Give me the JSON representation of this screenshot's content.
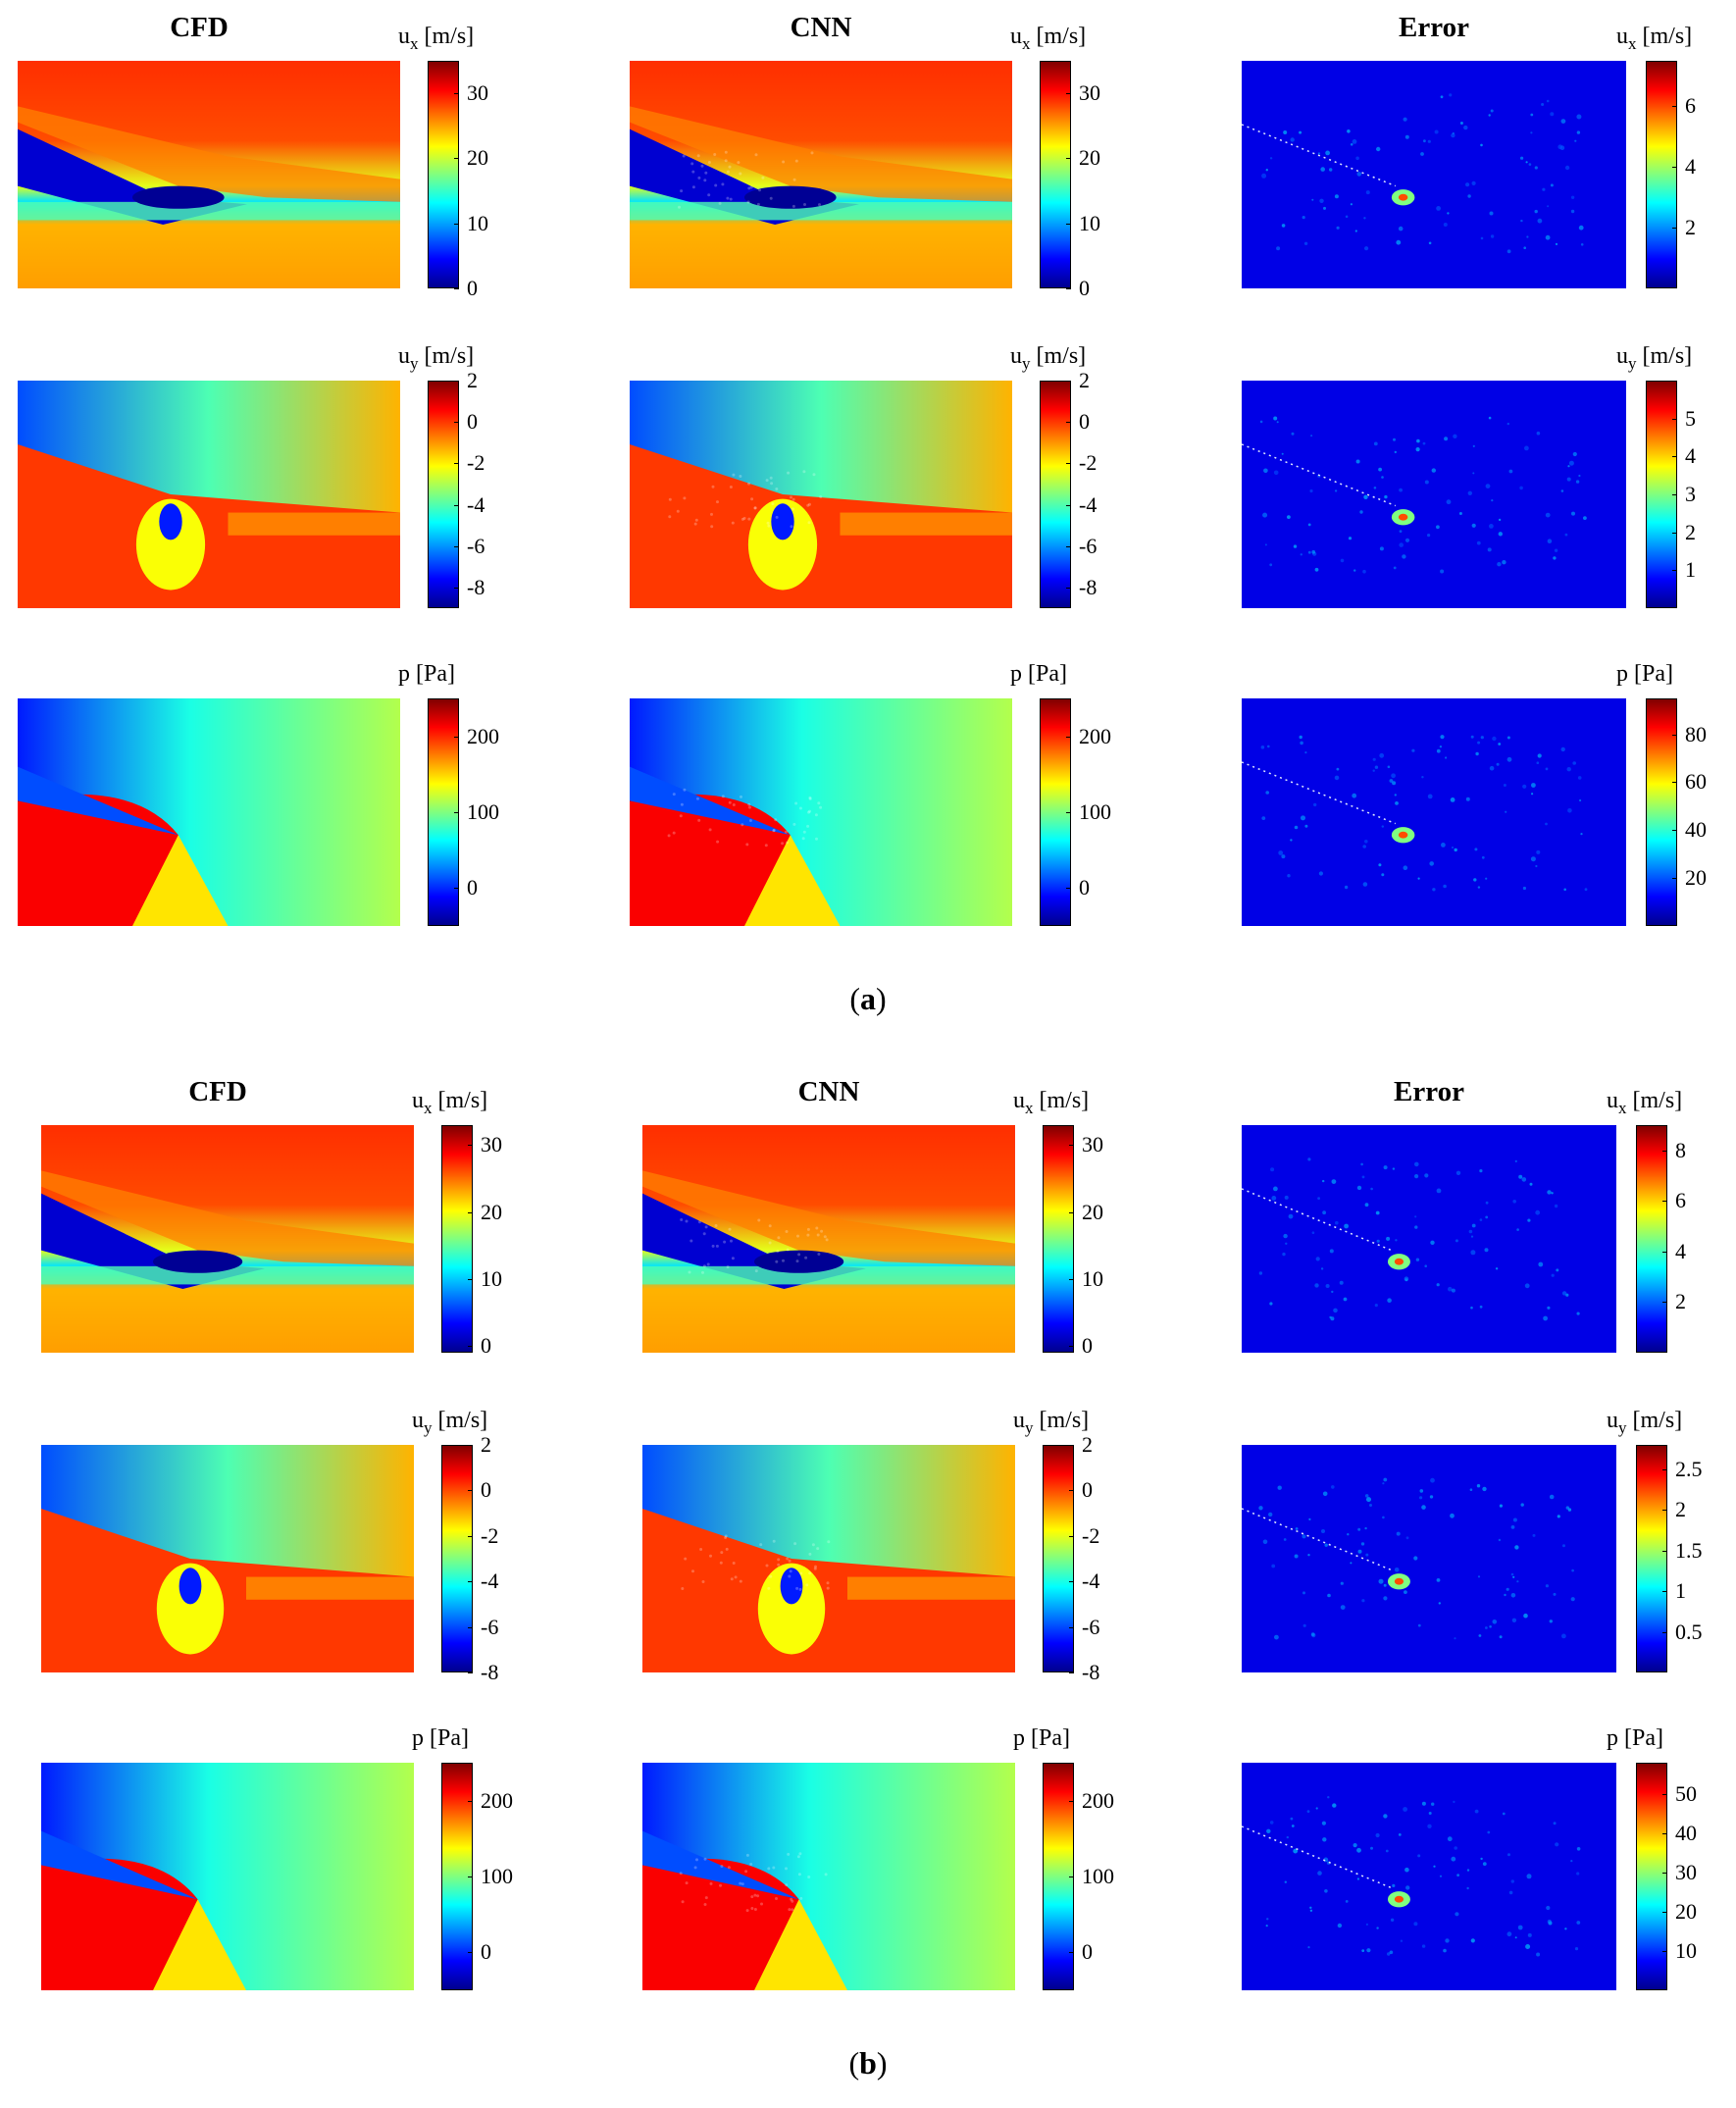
{
  "figure": {
    "columns": [
      "CFD",
      "CNN",
      "Error"
    ],
    "quantities": {
      "ux": {
        "sym": "u",
        "sub": "x",
        "unit": "[m/s]"
      },
      "uy": {
        "sym": "u",
        "sub": "y",
        "unit": "[m/s]"
      },
      "p": {
        "sym": "p",
        "sub": "",
        "unit": "[Pa]"
      }
    },
    "panels": [
      {
        "caption_open": "(",
        "caption_letter": "a",
        "caption_close": ")",
        "rows": [
          {
            "qty": "ux",
            "field": {
              "min": 0,
              "max": 35
            },
            "error": {
              "min": 0,
              "max": 7.5
            },
            "field_ticks": [
              "0",
              "10",
              "20",
              "30"
            ],
            "error_ticks": [
              "2",
              "4",
              "6"
            ]
          },
          {
            "qty": "uy",
            "field": {
              "min": -9,
              "max": 2
            },
            "error": {
              "min": 0,
              "max": 6
            },
            "field_ticks": [
              "-8",
              "-6",
              "-4",
              "-2",
              "0",
              "2"
            ],
            "error_ticks": [
              "1",
              "2",
              "3",
              "4",
              "5"
            ]
          },
          {
            "qty": "p",
            "field": {
              "min": -50,
              "max": 250
            },
            "error": {
              "min": 0,
              "max": 95
            },
            "field_ticks": [
              "0",
              "100",
              "200"
            ],
            "error_ticks": [
              "20",
              "40",
              "60",
              "80"
            ]
          }
        ]
      },
      {
        "caption_open": "(",
        "caption_letter": "b",
        "caption_close": ")",
        "rows": [
          {
            "qty": "ux",
            "field": {
              "min": -1,
              "max": 33
            },
            "error": {
              "min": 0,
              "max": 9
            },
            "field_ticks": [
              "0",
              "10",
              "20",
              "30"
            ],
            "error_ticks": [
              "2",
              "4",
              "6",
              "8"
            ]
          },
          {
            "qty": "uy",
            "field": {
              "min": -8,
              "max": 2
            },
            "error": {
              "min": 0,
              "max": 2.8
            },
            "field_ticks": [
              "-8",
              "-6",
              "-4",
              "-2",
              "0",
              "2"
            ],
            "error_ticks": [
              "0.5",
              "1",
              "1.5",
              "2",
              "2.5"
            ]
          },
          {
            "qty": "p",
            "field": {
              "min": -50,
              "max": 250
            },
            "error": {
              "min": 0,
              "max": 58
            },
            "field_ticks": [
              "0",
              "100",
              "200"
            ],
            "error_ticks": [
              "10",
              "20",
              "30",
              "40",
              "50"
            ]
          }
        ]
      }
    ]
  },
  "chart_data": {
    "type": "heatmap",
    "colormap": "jet",
    "panels": [
      {
        "label": "a",
        "columns": [
          "CFD",
          "CNN",
          "Error"
        ],
        "rows": [
          {
            "quantity": "ux",
            "unit": "m/s",
            "field_range": [
              0,
              35
            ],
            "error_range": [
              0,
              7.5
            ]
          },
          {
            "quantity": "uy",
            "unit": "m/s",
            "field_range": [
              -9,
              2
            ],
            "error_range": [
              0,
              6
            ]
          },
          {
            "quantity": "p",
            "unit": "Pa",
            "field_range": [
              -50,
              250
            ],
            "error_range": [
              0,
              95
            ]
          }
        ]
      },
      {
        "label": "b",
        "columns": [
          "CFD",
          "CNN",
          "Error"
        ],
        "rows": [
          {
            "quantity": "ux",
            "unit": "m/s",
            "field_range": [
              -1,
              33
            ],
            "error_range": [
              0,
              9
            ]
          },
          {
            "quantity": "uy",
            "unit": "m/s",
            "field_range": [
              -8,
              2
            ],
            "error_range": [
              0,
              2.8
            ]
          },
          {
            "quantity": "p",
            "unit": "Pa",
            "field_range": [
              -50,
              250
            ],
            "error_range": [
              0,
              58
            ]
          }
        ]
      }
    ]
  }
}
